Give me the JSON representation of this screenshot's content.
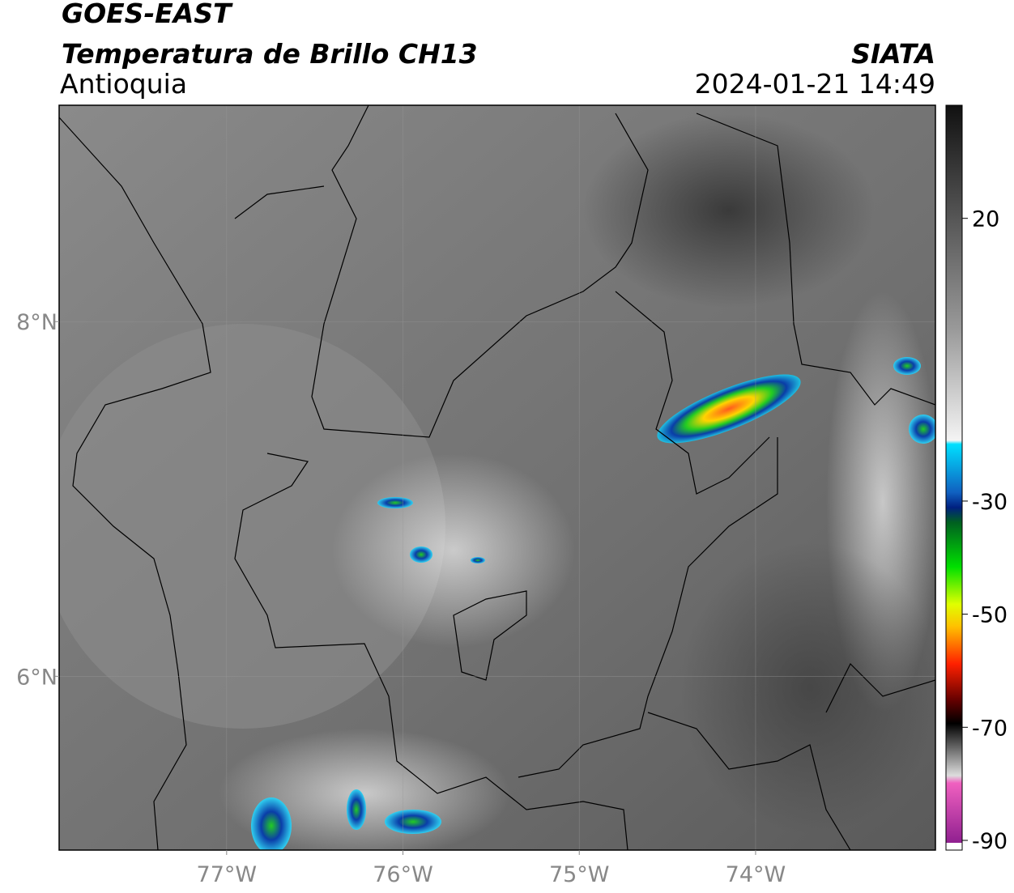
{
  "header": {
    "title": "GOES-EAST",
    "subtitle": "Temperatura de Brillo CH13",
    "region": "Antioquia",
    "source": "SIATA",
    "datetime": "2024-01-21 14:49"
  },
  "map": {
    "xlim": [
      -77.95,
      -72.98
    ],
    "ylim": [
      5.02,
      9.22
    ],
    "xticks": [
      {
        "value": -77,
        "label": "77°W"
      },
      {
        "value": -76,
        "label": "76°W"
      },
      {
        "value": -75,
        "label": "75°W"
      },
      {
        "value": -74,
        "label": "74°W"
      }
    ],
    "yticks": [
      {
        "value": 8,
        "label": "8°N"
      },
      {
        "value": 6,
        "label": "6°N"
      }
    ],
    "grid": true
  },
  "colorbar": {
    "lim": [
      -90,
      40
    ],
    "ticks": [
      20,
      -30,
      -50,
      -70,
      -90
    ]
  }
}
